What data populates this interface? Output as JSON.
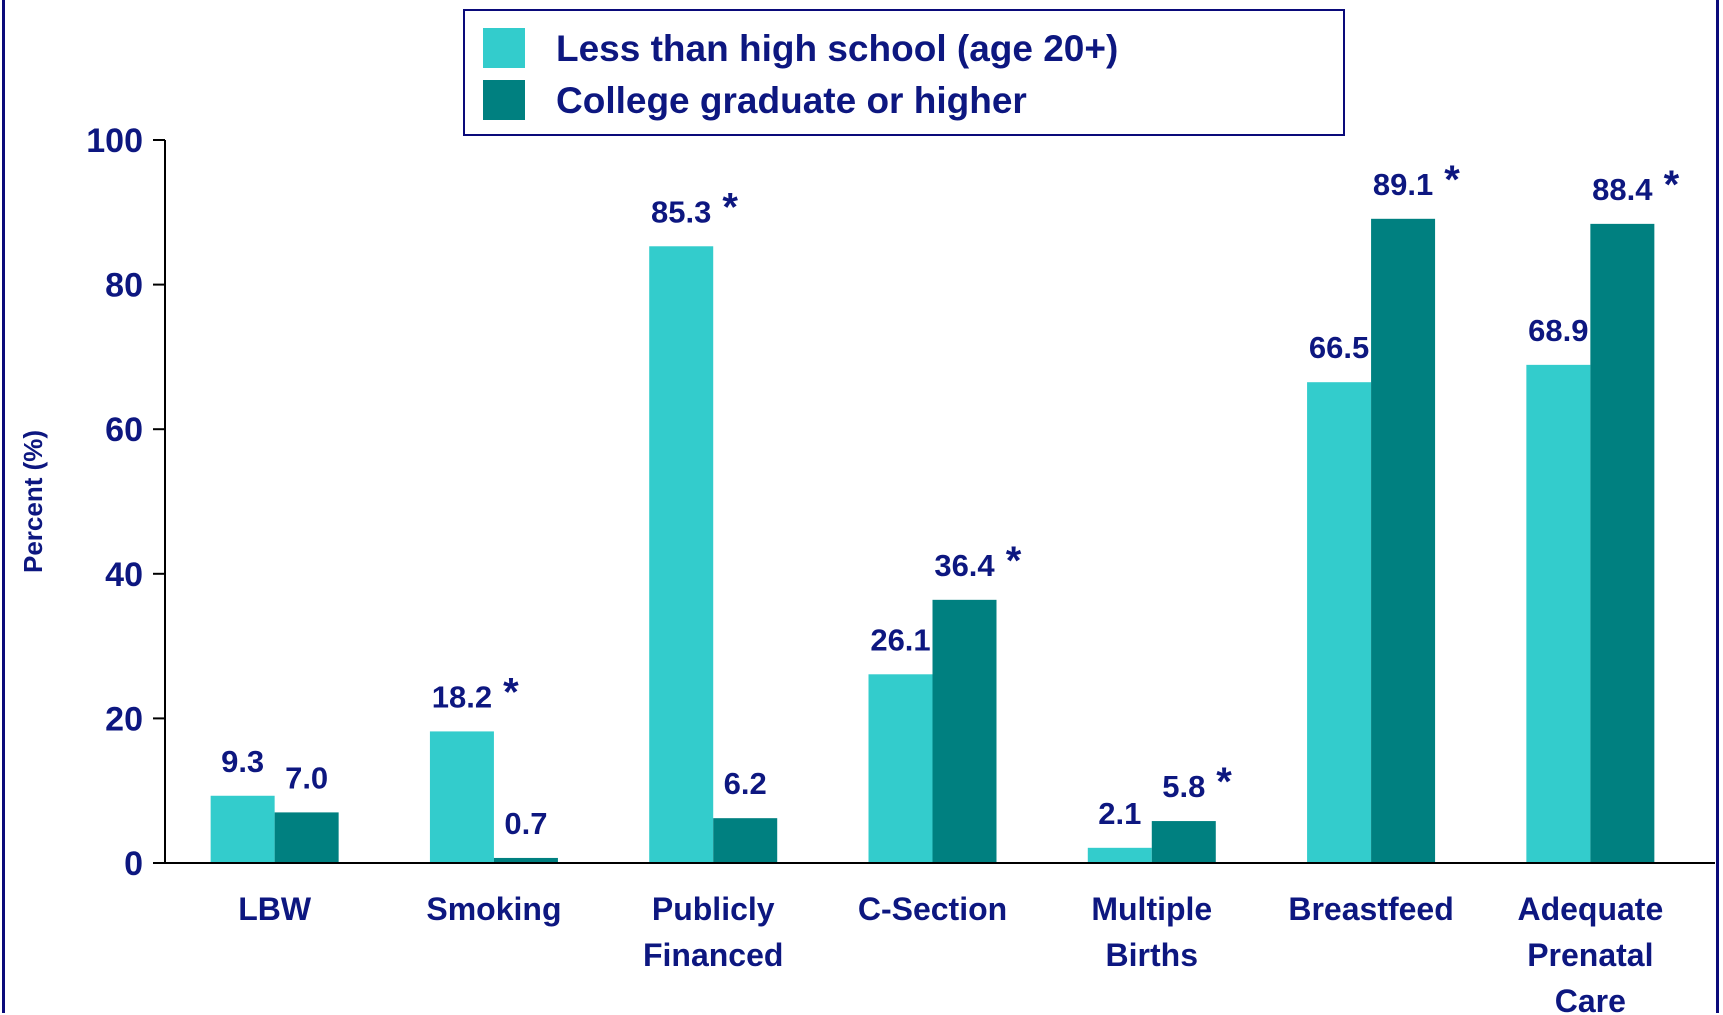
{
  "chart_data": {
    "type": "bar",
    "title": "",
    "xlabel": "",
    "ylabel": "Percent (%)",
    "ylim": [
      0,
      100
    ],
    "yticks": [
      0,
      20,
      40,
      60,
      80,
      100
    ],
    "grid": false,
    "legend_position": "top-center",
    "categories": [
      [
        "LBW"
      ],
      [
        "Smoking"
      ],
      [
        "Publicly",
        "Financed"
      ],
      [
        "C-Section"
      ],
      [
        "Multiple",
        "Births"
      ],
      [
        "Breastfeed"
      ],
      [
        "Adequate",
        "Prenatal",
        "Care"
      ]
    ],
    "series": [
      {
        "name": "Less than high school (age 20+)",
        "color": "#33cccc",
        "values": [
          9.3,
          18.2,
          85.3,
          26.1,
          2.1,
          66.5,
          68.9
        ],
        "labels": [
          "9.3",
          "18.2",
          "85.3",
          "26.1",
          "2.1",
          "66.5",
          "68.9"
        ]
      },
      {
        "name": "College graduate or higher",
        "color": "#008080",
        "values": [
          7.0,
          0.7,
          6.2,
          36.4,
          5.8,
          89.1,
          88.4
        ],
        "labels": [
          "7.0",
          "0.7",
          "6.2",
          "36.4",
          "5.8",
          "89.1",
          "88.4"
        ]
      }
    ],
    "significance_marks": [
      {
        "category_index": 1,
        "series_index": 0,
        "mark": "*"
      },
      {
        "category_index": 2,
        "series_index": 0,
        "mark": "*"
      },
      {
        "category_index": 3,
        "series_index": 1,
        "mark": "*"
      },
      {
        "category_index": 4,
        "series_index": 1,
        "mark": "*"
      },
      {
        "category_index": 5,
        "series_index": 1,
        "mark": "*"
      },
      {
        "category_index": 6,
        "series_index": 1,
        "mark": "*"
      }
    ],
    "colors": {
      "text": "#0d1780",
      "axis": "#000000",
      "legend_border": "#0a0a7a"
    }
  }
}
